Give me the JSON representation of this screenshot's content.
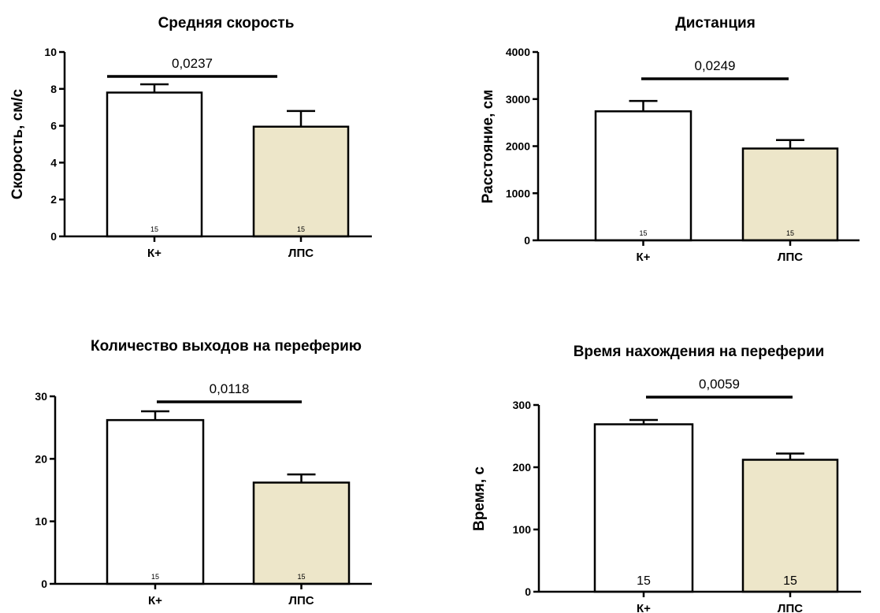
{
  "chart_data": [
    {
      "type": "bar",
      "title": "Средняя скорость",
      "ylabel": "Скорость, см/с",
      "xlabel": "",
      "categories": [
        "К+",
        "ЛПС"
      ],
      "values": [
        7.8,
        5.95
      ],
      "errors": [
        0.45,
        0.85
      ],
      "n_labels": [
        "15",
        "15"
      ],
      "ylim": [
        0,
        10
      ],
      "yticks": [
        0,
        2,
        4,
        6,
        8,
        10
      ],
      "p_value": "0,0237",
      "bar_colors": [
        "#ffffff",
        "#ede6c9"
      ],
      "grid": false
    },
    {
      "type": "bar",
      "title": "Дистанция",
      "ylabel": "Расстояние, см",
      "xlabel": "",
      "categories": [
        "К+",
        "ЛПС"
      ],
      "values": [
        2740,
        1950
      ],
      "errors": [
        220,
        180
      ],
      "n_labels": [
        "15",
        "15"
      ],
      "ylim": [
        0,
        4000
      ],
      "yticks": [
        0,
        1000,
        2000,
        3000,
        4000
      ],
      "p_value": "0,0249",
      "bar_colors": [
        "#ffffff",
        "#ede6c9"
      ],
      "grid": false
    },
    {
      "type": "bar",
      "title": "Количество выходов на переферию",
      "ylabel": "",
      "xlabel": "",
      "categories": [
        "К+",
        "ЛПС"
      ],
      "values": [
        26.2,
        16.2
      ],
      "errors": [
        1.4,
        1.3
      ],
      "n_labels": [
        "15",
        "15"
      ],
      "ylim": [
        0,
        30
      ],
      "yticks": [
        0,
        10,
        20,
        30
      ],
      "p_value": "0,0118",
      "bar_colors": [
        "#ffffff",
        "#ede6c9"
      ],
      "grid": false
    },
    {
      "type": "bar",
      "title": "Время нахождения на переферии",
      "ylabel": "Время, с",
      "xlabel": "",
      "categories": [
        "К+",
        "ЛПС"
      ],
      "values": [
        269,
        212
      ],
      "errors": [
        7,
        10
      ],
      "n_labels": [
        "15",
        "15"
      ],
      "ylim": [
        0,
        300
      ],
      "yticks": [
        0,
        100,
        200,
        300
      ],
      "p_value": "0,0059",
      "bar_colors": [
        "#ffffff",
        "#ede6c9"
      ],
      "grid": false
    }
  ]
}
